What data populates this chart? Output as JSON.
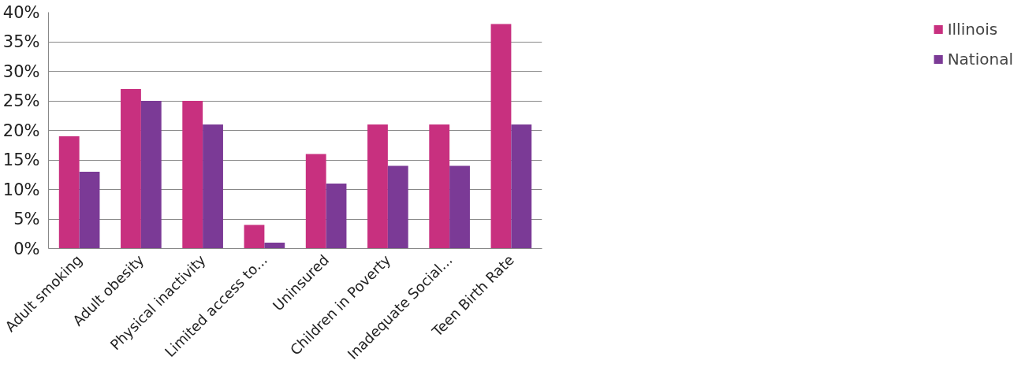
{
  "chart_data": {
    "type": "bar",
    "categories": [
      "Adult smoking",
      "Adult obesity",
      "Physical inactivity",
      "Limited access to...",
      "Uninsured",
      "Children in Poverty",
      "Inadequate Social...",
      "Teen Birth Rate"
    ],
    "series": [
      {
        "name": "Illinois",
        "color": "#c8307f",
        "values": [
          19,
          27,
          25,
          4,
          16,
          21,
          21,
          38
        ]
      },
      {
        "name": "National",
        "color": "#7b3a96",
        "values": [
          13,
          25,
          21,
          1,
          11,
          14,
          14,
          21
        ]
      }
    ],
    "ylim": [
      0,
      40
    ],
    "yticks": [
      {
        "value": 0,
        "label": "0%"
      },
      {
        "value": 5,
        "label": "5%"
      },
      {
        "value": 10,
        "label": "10%"
      },
      {
        "value": 15,
        "label": "15%"
      },
      {
        "value": 20,
        "label": "20%"
      },
      {
        "value": 25,
        "label": "25%"
      },
      {
        "value": 30,
        "label": "30%"
      },
      {
        "value": 35,
        "label": "35%"
      },
      {
        "value": 40,
        "label": "40%"
      }
    ],
    "grid": "y",
    "legend": "right"
  }
}
